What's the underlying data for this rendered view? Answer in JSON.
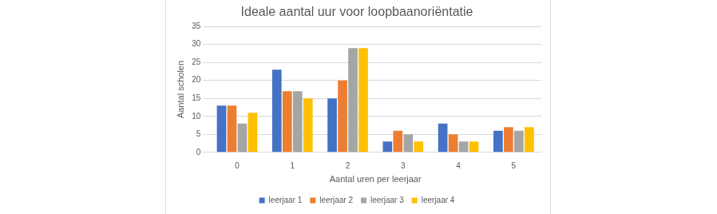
{
  "chart_data": {
    "type": "bar",
    "title": "Ideale aantal uur voor loopbaanoriëntatie",
    "x_label": "Aantal uren per leerjaar",
    "y_label": "Aantal scholen",
    "categories": [
      "0",
      "1",
      "2",
      "3",
      "4",
      "5"
    ],
    "series": [
      {
        "name": "leerjaar 1",
        "color": "#4472c4",
        "values": [
          13,
          23,
          15,
          3,
          8,
          6
        ]
      },
      {
        "name": "leerjaar 2",
        "color": "#ed7d31",
        "values": [
          13,
          17,
          20,
          6,
          5,
          7
        ]
      },
      {
        "name": "leerjaar 3",
        "color": "#a5a5a5",
        "values": [
          8,
          17,
          29,
          5,
          3,
          6
        ]
      },
      {
        "name": "leerjaar 4",
        "color": "#ffc000",
        "values": [
          11,
          15,
          29,
          3,
          3,
          7
        ]
      }
    ],
    "ylim": [
      0,
      35
    ],
    "yticks": [
      0,
      5,
      10,
      15,
      20,
      25,
      30,
      35
    ],
    "grid": true,
    "legend": "bottom"
  }
}
